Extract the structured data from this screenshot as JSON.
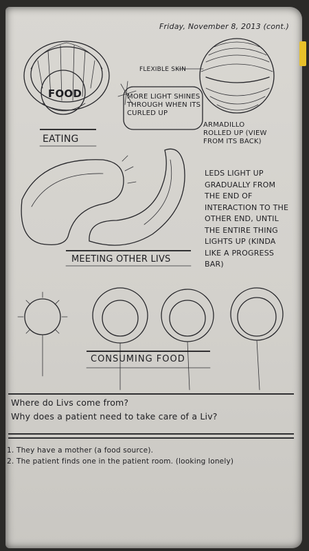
{
  "date_heading": "Friday, November 8, 2013 (cont.)",
  "sketch_labels": {
    "food": "FOOD",
    "eating": "EATING",
    "flexible_skin": "FLEXIBLE SKIN",
    "armadillo": "ARMADILLO ROLLED UP (VIEW FROM ITS BACK)",
    "more_light": "MORE LIGHT SHINES THROUGH WHEN ITS CURLED UP",
    "leds": "LEDS LIGHT UP GRADUALLY FROM THE END OF INTERACTION TO THE OTHER END, UNTIL THE ENTIRE THING LIGHTS UP (KINDA LIKE A PROGRESS BAR)",
    "meeting": "MEETING OTHER LIVS",
    "consuming": "CONSUMING FOOD"
  },
  "questions": [
    "Where do Livs come from?",
    "Why does a patient need to take care of a Liv?"
  ],
  "answers": [
    "1. They have a mother (a food source).",
    "2. The patient finds one in the patient room. (looking lonely)"
  ],
  "colors": {
    "paper": "#d6d4cf",
    "ink": "#1e1e22",
    "tab": "#e8c02a"
  }
}
